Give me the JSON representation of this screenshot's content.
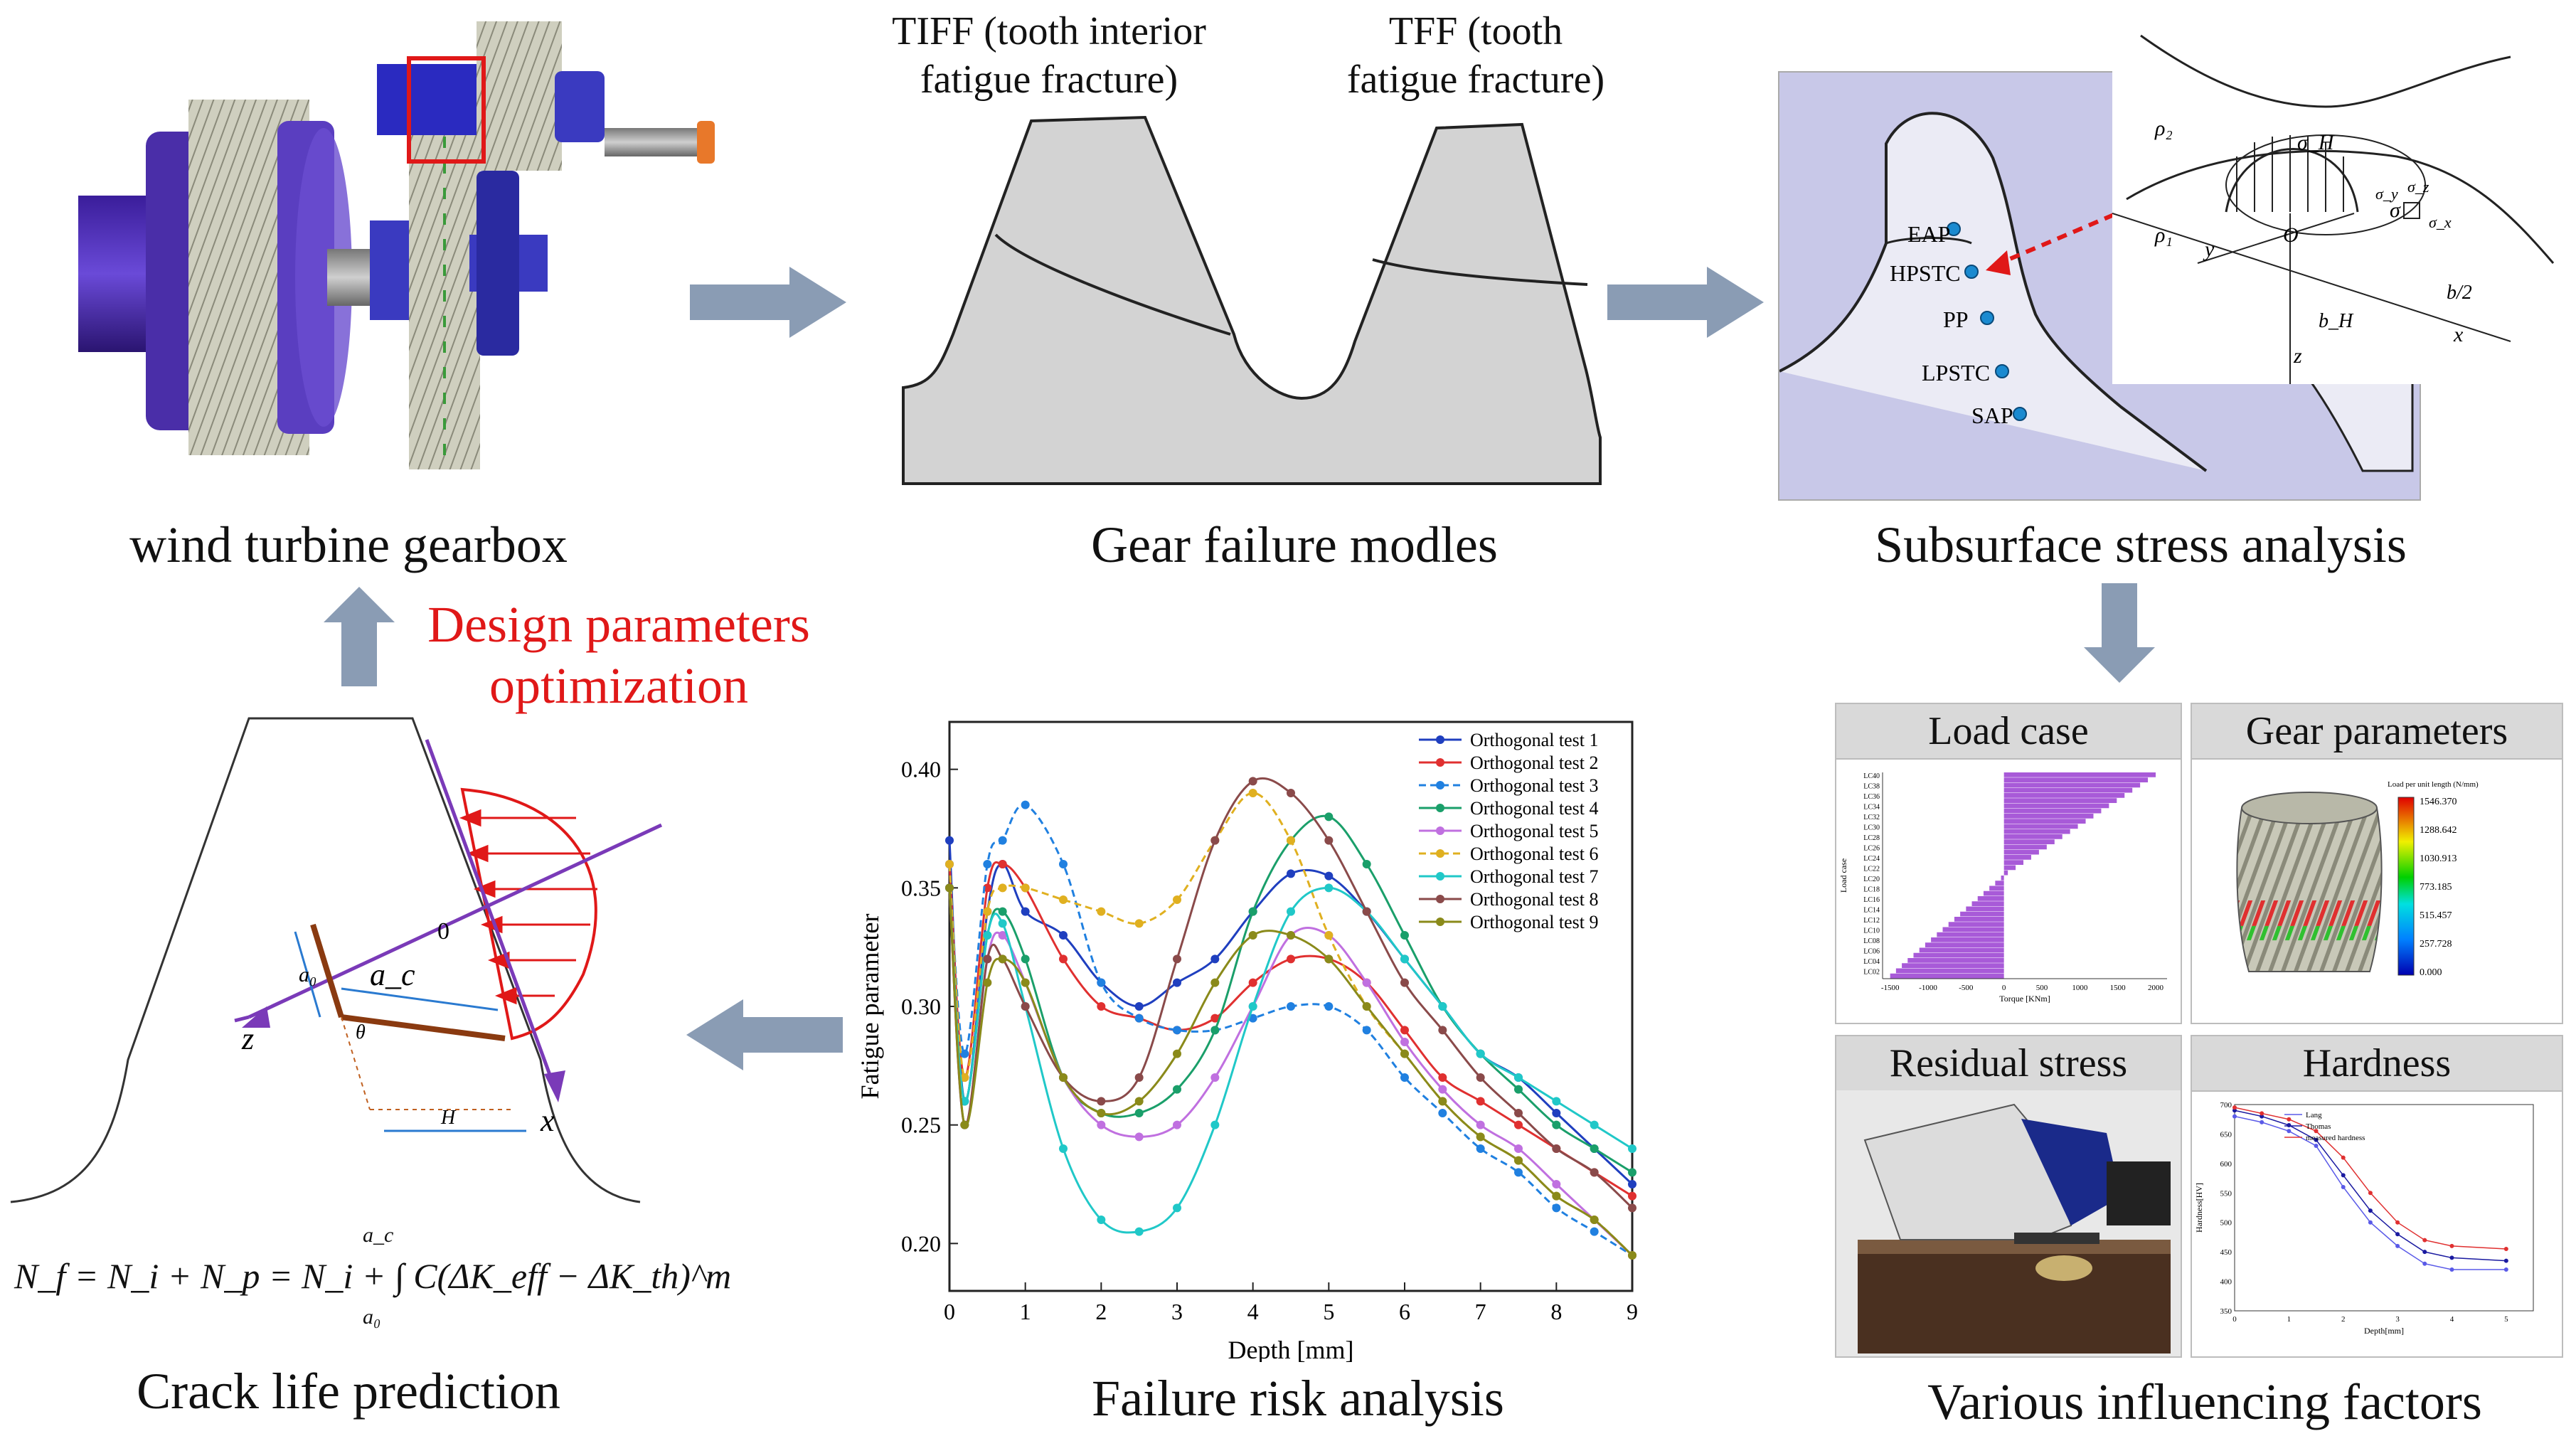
{
  "captions": {
    "gearbox": "wind turbine gearbox",
    "failure_models": "Gear failure modles",
    "subsurface": "Subsurface stress analysis",
    "crack": "Crack life prediction",
    "risk": "Failure risk analysis",
    "factors": "Various influencing factors"
  },
  "optimization": {
    "line1": "Design parameters",
    "line2": "optimization"
  },
  "failure_modes": {
    "tiff_line1": "TIFF (tooth interior",
    "tiff_line2": "fatigue fracture)",
    "tff_line1": "TFF (tooth",
    "tff_line2": "fatigue fracture)"
  },
  "stress_points": [
    "EAP",
    "HPSTC",
    "PP",
    "LPSTC",
    "SAP"
  ],
  "hertz_labels": {
    "rho2": "ρ₂",
    "rho1": "ρ₁",
    "sigmaH": "σ_H",
    "sigma": "σ",
    "O": "O",
    "y": "y",
    "z": "z",
    "x": "x",
    "bH": "b_H",
    "bhalf": "b/2",
    "sx": "σ_x",
    "sy": "σ_y",
    "sz": "σ_z"
  },
  "crack": {
    "a0": "a₀",
    "ac": "a_c",
    "theta": "θ",
    "H": "H",
    "z": "z",
    "x": "x",
    "zero": "0",
    "formula": "N_f = N_i + N_p = N_i + ∫ C(ΔK_eff − ΔK_th)^m",
    "int_upper": "a_c",
    "int_lower": "a₀"
  },
  "factors": {
    "load_case": "Load case",
    "gear_parameters": "Gear parameters",
    "residual_stress": "Residual stress",
    "hardness": "Hardness",
    "load_axis_x": "Torque [KNm]",
    "load_axis_y": "Load case",
    "load_ticks_x": [
      "-1500",
      "-1000",
      "-500",
      "0",
      "500",
      "1000",
      "1500",
      "2000"
    ],
    "load_cases": [
      "LC40",
      "LC38",
      "LC36",
      "LC34",
      "LC32",
      "LC30",
      "LC28",
      "LC26",
      "LC24",
      "LC22",
      "LC20",
      "LC18",
      "LC16",
      "LC14",
      "LC12",
      "LC10",
      "LC08",
      "LC06",
      "LC04",
      "LC02"
    ],
    "colorbar_title": "Load per unit length (N/mm)",
    "colorbar_ticks": [
      "1546.370",
      "1288.642",
      "1030.913",
      "773.185",
      "515.457",
      "257.728",
      "0.000"
    ],
    "hardness_legend": [
      "Lang",
      "Thomas",
      "measured hardness"
    ],
    "hardness_axis_x": "Depth[mm]",
    "hardness_axis_y": "Hardness[HV]",
    "hardness_ticks_y": [
      "700",
      "650",
      "600",
      "550",
      "500",
      "450",
      "400",
      "350"
    ],
    "hardness_ticks_x": [
      "0",
      "1",
      "2",
      "3",
      "4",
      "5"
    ]
  },
  "chart_data": {
    "type": "line",
    "title": "",
    "xlabel": "Depth [mm]",
    "ylabel": "Fatigue parameter",
    "xlim": [
      0,
      9
    ],
    "ylim": [
      0.18,
      0.42
    ],
    "x_ticks": [
      "0",
      "1",
      "2",
      "3",
      "4",
      "5",
      "6",
      "7",
      "8",
      "9"
    ],
    "y_ticks": [
      "0.20",
      "0.25",
      "0.30",
      "0.35",
      "0.40"
    ],
    "legend_position": "top-right",
    "x": [
      0,
      0.2,
      0.5,
      0.7,
      1.0,
      1.5,
      2.0,
      2.5,
      3.0,
      3.5,
      4.0,
      4.5,
      5.0,
      5.5,
      6.0,
      6.5,
      7.0,
      7.5,
      8.0,
      8.5,
      9.0
    ],
    "series": [
      {
        "name": "Orthogonal test 1",
        "color": "#1f3fbf",
        "dash": "",
        "values": [
          0.37,
          0.26,
          0.34,
          0.36,
          0.34,
          0.33,
          0.31,
          0.3,
          0.31,
          0.32,
          0.34,
          0.356,
          0.355,
          0.34,
          0.32,
          0.3,
          0.28,
          0.27,
          0.255,
          0.24,
          0.225
        ]
      },
      {
        "name": "Orthogonal test 2",
        "color": "#e03030",
        "dash": "",
        "values": [
          0.36,
          0.27,
          0.35,
          0.36,
          0.35,
          0.32,
          0.3,
          0.295,
          0.29,
          0.295,
          0.31,
          0.32,
          0.32,
          0.31,
          0.29,
          0.27,
          0.26,
          0.25,
          0.24,
          0.23,
          0.22
        ]
      },
      {
        "name": "Orthogonal test 3",
        "color": "#2080e0",
        "dash": "10,6",
        "values": [
          0.36,
          0.28,
          0.36,
          0.37,
          0.385,
          0.36,
          0.31,
          0.295,
          0.29,
          0.29,
          0.295,
          0.3,
          0.3,
          0.29,
          0.27,
          0.255,
          0.24,
          0.23,
          0.215,
          0.205,
          0.195
        ]
      },
      {
        "name": "Orthogonal test 4",
        "color": "#1a9f6a",
        "dash": "",
        "values": [
          0.35,
          0.26,
          0.33,
          0.34,
          0.32,
          0.27,
          0.255,
          0.255,
          0.265,
          0.29,
          0.34,
          0.37,
          0.38,
          0.36,
          0.33,
          0.3,
          0.28,
          0.265,
          0.25,
          0.24,
          0.23
        ]
      },
      {
        "name": "Orthogonal test 5",
        "color": "#c070e0",
        "dash": "",
        "values": [
          0.35,
          0.25,
          0.32,
          0.33,
          0.31,
          0.27,
          0.25,
          0.245,
          0.25,
          0.27,
          0.3,
          0.33,
          0.33,
          0.31,
          0.285,
          0.265,
          0.25,
          0.24,
          0.225,
          0.21,
          0.195
        ]
      },
      {
        "name": "Orthogonal test 6",
        "color": "#e0b020",
        "dash": "10,6",
        "values": [
          0.36,
          0.27,
          0.34,
          0.35,
          0.35,
          0.345,
          0.34,
          0.335,
          0.345,
          0.37,
          0.39,
          0.37,
          0.33,
          0.3,
          0.28,
          0.26,
          0.245,
          0.235,
          0.22,
          0.21,
          0.195
        ]
      },
      {
        "name": "Orthogonal test 7",
        "color": "#20c8c8",
        "dash": "",
        "values": [
          0.35,
          0.26,
          0.33,
          0.335,
          0.3,
          0.24,
          0.21,
          0.205,
          0.215,
          0.25,
          0.3,
          0.34,
          0.35,
          0.34,
          0.32,
          0.3,
          0.28,
          0.27,
          0.26,
          0.25,
          0.24
        ]
      },
      {
        "name": "Orthogonal test 8",
        "color": "#8a4a4a",
        "dash": "",
        "values": [
          0.35,
          0.25,
          0.32,
          0.32,
          0.3,
          0.27,
          0.26,
          0.27,
          0.32,
          0.37,
          0.395,
          0.39,
          0.37,
          0.34,
          0.31,
          0.29,
          0.27,
          0.255,
          0.24,
          0.23,
          0.215
        ]
      },
      {
        "name": "Orthogonal test 9",
        "color": "#8a8a1a",
        "dash": "",
        "values": [
          0.35,
          0.25,
          0.31,
          0.32,
          0.31,
          0.27,
          0.255,
          0.26,
          0.28,
          0.31,
          0.33,
          0.33,
          0.32,
          0.3,
          0.28,
          0.26,
          0.245,
          0.235,
          0.22,
          0.21,
          0.195
        ]
      }
    ]
  }
}
